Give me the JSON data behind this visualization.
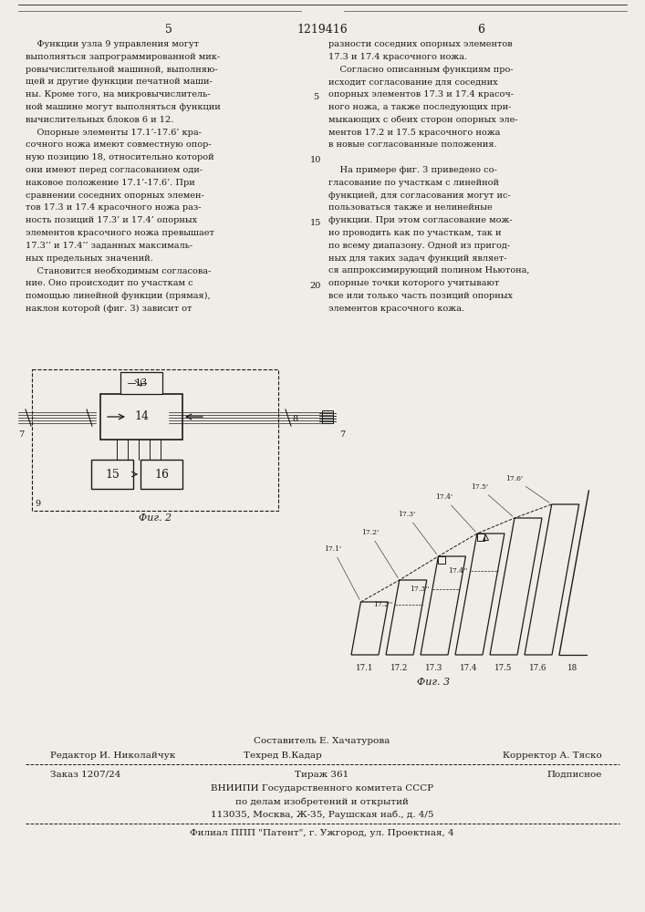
{
  "page_number_left": "5",
  "page_number_center": "1219416",
  "page_number_right": "6",
  "background_color": "#f0ede6",
  "text_color": "#1a1a1a",
  "col1_text": [
    "    Функции узла 9 управления могут",
    "выполняться запрограммированной мик-",
    "ровычислительной машиной, выполняю-",
    "щей и другие функции печатной маши-",
    "ны. Кроме того, на микровычислитель-",
    "ной машине могут выполняться функции",
    "вычислительных блоков 6 и 12.",
    "    Опорные элементы 17.1’-17.6’ кра-",
    "сочного ножа имеют совместную опор-",
    "ную позицию 18, относительно которой",
    "они имеют перед согласованием оди-",
    "наковое положение 17.1’-17.6’. При",
    "сравнении соседних опорных элемен-",
    "тов 17.3 и 17.4 красочного ножа раз-",
    "ность позиций 17.3’ и 17.4’ опорных",
    "элементов красочного ножа превышает",
    "17.3’’ и 17.4’’ заданных максималь-",
    "ных предельных значений.",
    "    Становится необходимым согласова-",
    "ние. Оно происходит по участкам с",
    "помощью линейной функции (прямая),",
    "наклон которой (фиг. 3) зависит от"
  ],
  "col2_text": [
    "разности соседних опорных элементов",
    "17.3 и 17.4 красочного ножа.",
    "    Согласно описанным функциям про-",
    "исходит согласование для соседних",
    "опорных элементов 17.3 и 17.4 красоч-",
    "ного ножа, а также последующих при-",
    "мыкающих с обеих сторон опорных эле-",
    "ментов 17.2 и 17.5 красочного ножа",
    "в новые согласованные положения.",
    "",
    "    На примере фиг. 3 приведено со-",
    "гласование по участкам с линейной",
    "функцией, для согласования могут ис-",
    "пользоваться также и нелинейные",
    "функции. При этом согласование мож-",
    "но проводить как по участкам, так и",
    "по всему диапазону. Одной из пригод-",
    "ных для таких задач функций являет-",
    "ся аппроксимирующий полином Ньютона,",
    "опорные точки которого учитывают",
    "все или только часть позиций опорных",
    "элементов красочного кожа."
  ],
  "fig2_label": "Фиг. 2",
  "fig3_label": "Фиг. 3",
  "footer_line1_center": "Составитель Е. Хачатурова",
  "footer_line2_left": "Редактор И. Николайчук",
  "footer_line2_center": "Техред В.Кадар",
  "footer_line2_right": "Корректор А. Тяско",
  "footer_line3_left": "Заказ 1207/24",
  "footer_line3_center": "Тираж 361",
  "footer_line3_right": "Подписное",
  "footer_line4": "ВНИИПИ Государственного комитета СССР",
  "footer_line5": "по делам изобретений и открытий",
  "footer_line6": "113035, Москва, Ж-35, Раушская наб., д. 4/5",
  "footer_line7": "Филиал ППП \"Патент\", г. Ужгород, ул. Проектная, 4"
}
